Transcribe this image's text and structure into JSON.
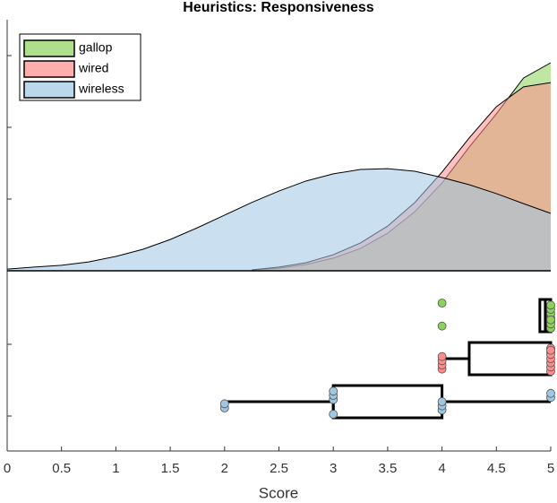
{
  "chart_data": {
    "type": "raincloud",
    "title": "Heuristics: Responsiveness",
    "xlabel": "Score",
    "xlim": [
      0,
      5
    ],
    "xticks": [
      0,
      0.5,
      1,
      1.5,
      2,
      2.5,
      3,
      3.5,
      4,
      4.5,
      5
    ],
    "legend": "upper left",
    "density_x": [
      0,
      0.25,
      0.5,
      0.75,
      1,
      1.25,
      1.5,
      1.75,
      2,
      2.25,
      2.5,
      2.75,
      3,
      3.25,
      3.5,
      3.75,
      4,
      4.25,
      4.5,
      4.75,
      5
    ],
    "density_ylim": [
      0,
      0.875
    ],
    "density_yticks": [
      0.25,
      0.5,
      0.75
    ],
    "series": [
      {
        "name": "gallop",
        "color": "#8cd15a",
        "density": [
          null,
          null,
          null,
          null,
          null,
          null,
          null,
          null,
          null,
          0.003,
          0.009,
          0.022,
          0.044,
          0.078,
          0.131,
          0.206,
          0.306,
          0.431,
          0.547,
          0.672,
          0.725
        ],
        "scores": [
          4,
          4,
          5,
          5,
          5,
          5,
          5,
          5,
          5,
          5
        ],
        "box": {
          "whisker_low": 4.9,
          "q1": 4.9,
          "median": 4.95,
          "q3": 5,
          "whisker_high": 5
        }
      },
      {
        "name": "wired",
        "color": "#ff8c8c",
        "density": [
          null,
          null,
          null,
          null,
          null,
          null,
          null,
          null,
          null,
          0.003,
          0.013,
          0.028,
          0.056,
          0.097,
          0.156,
          0.238,
          0.344,
          0.463,
          0.572,
          0.641,
          0.656
        ],
        "scores": [
          4,
          4,
          4,
          4,
          5,
          5,
          5,
          5,
          5,
          5,
          5,
          5
        ],
        "box": {
          "whisker_low": 4,
          "q1": 4.25,
          "median": 5,
          "q3": 5,
          "whisker_high": 5
        }
      },
      {
        "name": "wireless",
        "color": "#9ec7e3",
        "density": [
          0.006,
          0.013,
          0.019,
          0.031,
          0.05,
          0.075,
          0.109,
          0.15,
          0.194,
          0.238,
          0.278,
          0.313,
          0.338,
          0.353,
          0.356,
          0.347,
          0.325,
          0.3,
          0.269,
          0.234,
          0.2
        ],
        "scores": [
          2,
          2,
          3,
          3,
          3,
          3,
          4,
          4,
          4,
          5,
          5
        ],
        "box": {
          "whisker_low": 2,
          "q1": 3,
          "median": 3,
          "q3": 4,
          "whisker_high": 5
        }
      }
    ]
  }
}
